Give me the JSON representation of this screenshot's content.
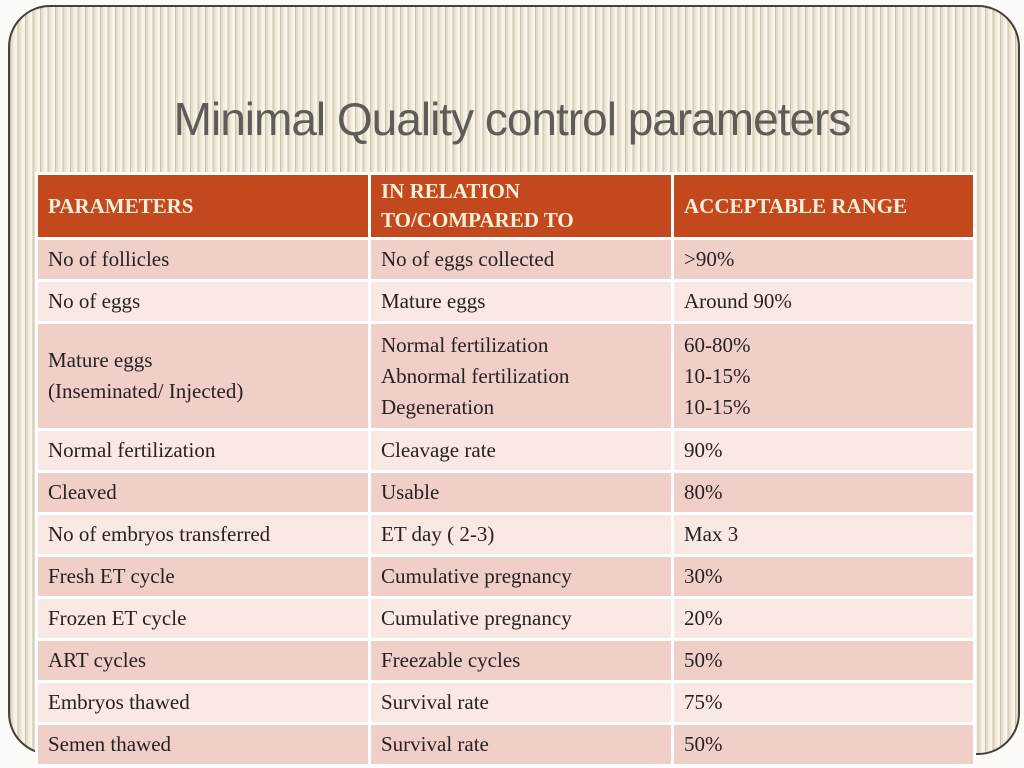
{
  "slide": {
    "title": "Minimal Quality control parameters"
  },
  "table": {
    "headers": [
      "PARAMETERS",
      "IN RELATION\nTO/COMPARED TO",
      "ACCEPTABLE RANGE"
    ],
    "rows": [
      {
        "cells": [
          "No of follicles",
          "No of eggs collected",
          ">90%"
        ]
      },
      {
        "cells": [
          "No of eggs",
          "Mature eggs",
          "Around 90%"
        ]
      },
      {
        "cells": [
          "Mature eggs\n(Inseminated/ Injected)",
          "Normal fertilization\nAbnormal fertilization\nDegeneration",
          "60-80%\n10-15%\n10-15%"
        ]
      },
      {
        "cells": [
          "Normal fertilization",
          "Cleavage rate",
          "90%"
        ]
      },
      {
        "cells": [
          "Cleaved",
          "Usable",
          "80%"
        ]
      },
      {
        "cells": [
          "No of embryos transferred",
          "ET day ( 2-3)",
          "Max 3"
        ]
      },
      {
        "cells": [
          "Fresh ET cycle",
          "Cumulative pregnancy",
          "30%"
        ]
      },
      {
        "cells": [
          "Frozen ET cycle",
          "Cumulative pregnancy",
          "20%"
        ]
      },
      {
        "cells": [
          "ART cycles",
          "Freezable cycles",
          "50%"
        ]
      },
      {
        "cells": [
          "Embryos thawed",
          "Survival rate",
          "75%"
        ]
      },
      {
        "cells": [
          "Semen thawed",
          "Survival rate",
          "50%"
        ]
      }
    ]
  },
  "colors": {
    "header_bg": "#c4481e",
    "header_text": "#f7f0d9",
    "row_dark": "#f0cfc9",
    "row_light": "#f9e8e4",
    "body_text": "#272120",
    "title_text": "#5f5b57",
    "frame_border": "#46403a"
  }
}
